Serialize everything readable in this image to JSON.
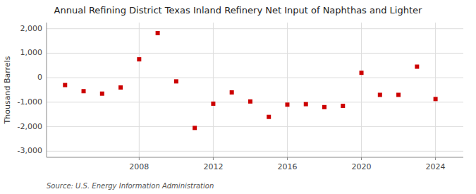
{
  "chart_data": {
    "type": "scatter",
    "title": "Annual Refining District Texas Inland Refinery Net Input of Naphthas and Lighter",
    "ylabel": "Thousand Barrels",
    "source": "Source: U.S. Energy Information Administration",
    "x": [
      2004,
      2005,
      2006,
      2007,
      2008,
      2009,
      2010,
      2011,
      2012,
      2013,
      2014,
      2015,
      2016,
      2017,
      2018,
      2019,
      2020,
      2021,
      2022,
      2023,
      2024
    ],
    "values": [
      -300,
      -550,
      -650,
      -400,
      750,
      1820,
      -150,
      -2050,
      -1060,
      -600,
      -970,
      -1600,
      -1100,
      -1080,
      -1200,
      -1150,
      200,
      -700,
      -700,
      450,
      -870
    ],
    "color": "#cc0000",
    "marker": "square",
    "ylim": [
      -3250,
      2250
    ],
    "yticks": [
      {
        "value": -3000,
        "label": "-3,000"
      },
      {
        "value": -2000,
        "label": "-2,000"
      },
      {
        "value": -1000,
        "label": "-1,000"
      },
      0,
      {
        "value": 1000,
        "label": "1,000"
      },
      {
        "value": 2000,
        "label": "2,000"
      }
    ],
    "xlim": [
      2003.0,
      2025.5
    ],
    "xticks": [
      2008,
      2012,
      2016,
      2020,
      2024
    ],
    "grid": true
  }
}
